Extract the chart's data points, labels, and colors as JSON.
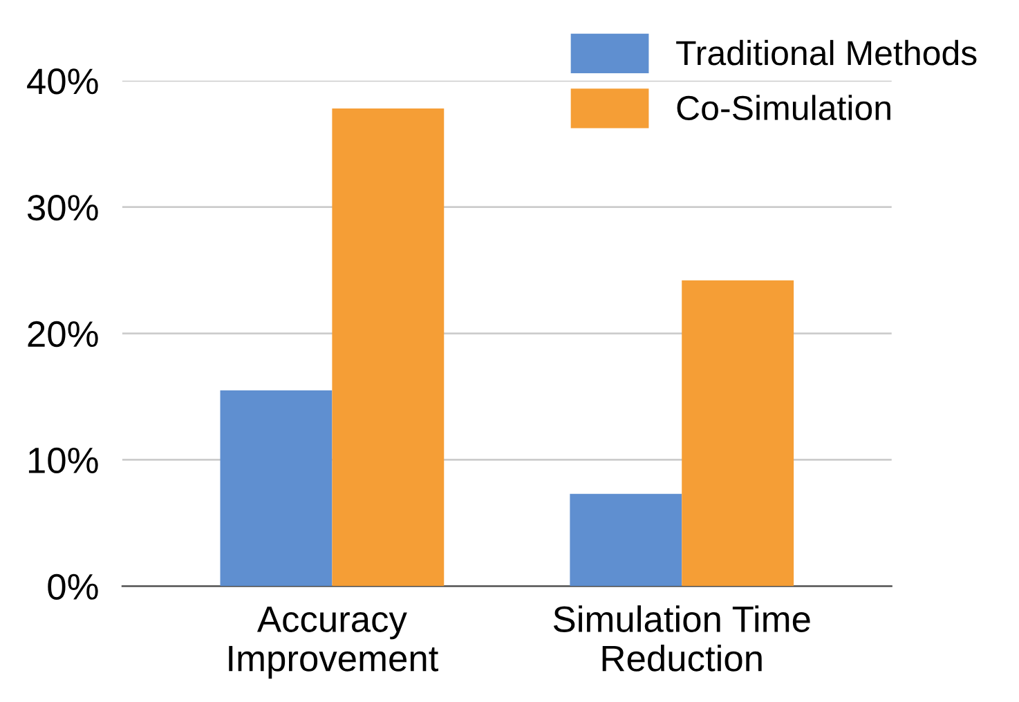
{
  "chart_data": {
    "type": "bar",
    "categories": [
      "Accuracy\nImprovement",
      "Simulation Time\nReduction"
    ],
    "series": [
      {
        "name": "Traditional Methods",
        "color": "#5f8fd0",
        "values": [
          15.5,
          7.3
        ]
      },
      {
        "name": "Co-Simulation",
        "color": "#f59e36",
        "values": [
          37.8,
          24.2
        ]
      }
    ],
    "ylim": [
      0,
      40
    ],
    "yticks": [
      {
        "value": 0,
        "label": "0%"
      },
      {
        "value": 10,
        "label": "10%"
      },
      {
        "value": 20,
        "label": "20%"
      },
      {
        "value": 30,
        "label": "30%"
      },
      {
        "value": 40,
        "label": "40%"
      }
    ],
    "grid": "y",
    "legend": "top right"
  }
}
